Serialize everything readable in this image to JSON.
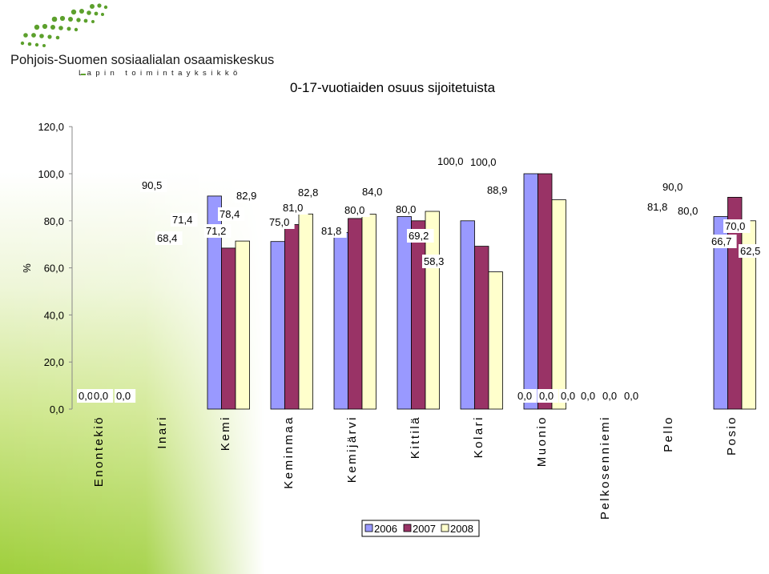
{
  "header": {
    "org_name": "Pohjois-Suomen sosiaalialan osaamiskeskus",
    "unit_name": "Lapin toimintayksikkö"
  },
  "colors": {
    "s2006": "#9999ff",
    "s2007": "#993366",
    "s2008": "#ffffcc",
    "logo_green": "#5ca02c"
  },
  "chart_data": {
    "type": "bar",
    "title": "0-17-vuotiaiden osuus sijoitetuista",
    "ylabel": "%",
    "xlabel": "",
    "ylim": [
      0,
      120
    ],
    "yticks": [
      0,
      20,
      40,
      60,
      80,
      100,
      120
    ],
    "ytick_labels": [
      "0,0",
      "20,0",
      "40,0",
      "60,0",
      "80,0",
      "100,0",
      "120,0"
    ],
    "categories": [
      "Enontekiö",
      "Inari",
      "Kemi",
      "Keminmaa",
      "Kemijärvi",
      "Kittilä",
      "Kolari",
      "Muonio",
      "Pelkosenniemi",
      "Pello",
      "Posio"
    ],
    "series": [
      {
        "name": "2006",
        "values": [
          0,
          90.5,
          71.2,
          75.0,
          81.8,
          80.0,
          100.0,
          0,
          0,
          81.8,
          66.7
        ],
        "labels": [
          "0,0",
          "90,5",
          "71,2",
          "75,0",
          "81,8",
          "80,0",
          "100,0",
          "0,0",
          "0,0",
          "81,8",
          "66,7"
        ]
      },
      {
        "name": "2007",
        "values": [
          0,
          68.4,
          78.4,
          81.0,
          80.0,
          69.2,
          100.0,
          0,
          0,
          90.0,
          70.0
        ],
        "labels": [
          "0,0",
          "68,4",
          "78,4",
          "81,0",
          "80,0",
          "69,2",
          "100,0",
          "0,0",
          "0,0",
          "90,0",
          "70,0"
        ]
      },
      {
        "name": "2008",
        "values": [
          0,
          71.4,
          82.9,
          82.8,
          84.0,
          58.3,
          88.9,
          0,
          0,
          80.0,
          62.5
        ],
        "labels": [
          "0,0",
          "71,4",
          "82,9",
          "82,8",
          "84,0",
          "58,3",
          "88,9",
          "0,0",
          "0,0",
          "80,0",
          "62,5"
        ]
      }
    ],
    "grid": false,
    "legend_position": "bottom"
  }
}
